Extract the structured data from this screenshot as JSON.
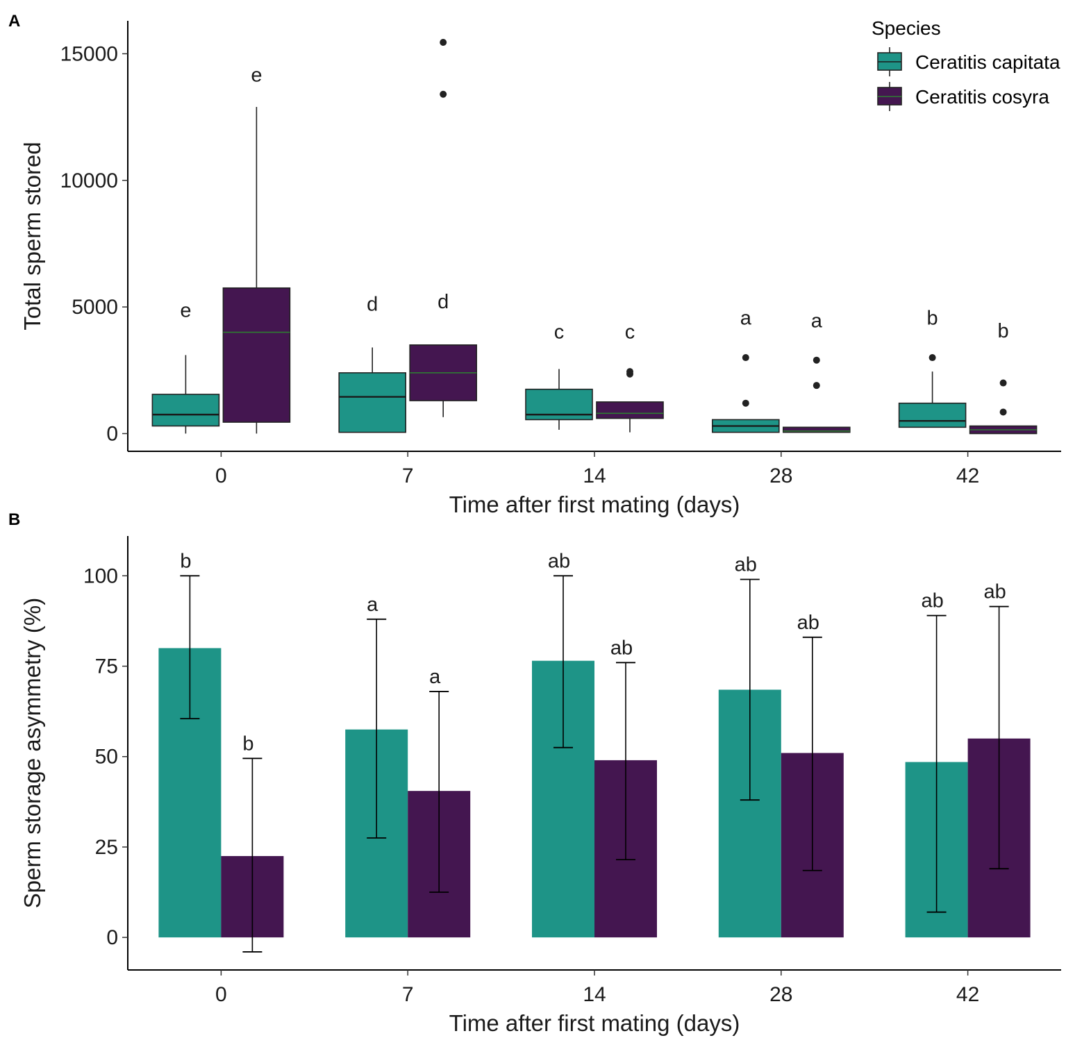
{
  "figure": {
    "panel_labels": [
      "A",
      "B"
    ]
  },
  "colors": {
    "capitata": "#1e9487",
    "cosyra": "#441650",
    "median_cosyra": "#2e7d32"
  },
  "chart_data": [
    {
      "panel": "A",
      "type": "box",
      "title": "",
      "xlabel": "Time after first mating (days)",
      "ylabel": "Total sperm stored",
      "ylim": [
        -700,
        16300
      ],
      "yticks": [
        0,
        5000,
        10000,
        15000
      ],
      "categories": [
        "0",
        "7",
        "14",
        "28",
        "42"
      ],
      "legend": {
        "title": "Species",
        "position": "top-right",
        "entries": [
          "Ceratitis capitata",
          "Ceratitis cosyra"
        ]
      },
      "series": [
        {
          "name": "Ceratitis capitata",
          "boxes": [
            {
              "min": 0,
              "q1": 300,
              "median": 750,
              "q3": 1550,
              "max": 3100,
              "outliers": [],
              "letter": "e",
              "letter_y": 4600
            },
            {
              "min": 50,
              "q1": 50,
              "median": 1450,
              "q3": 2400,
              "max": 3400,
              "outliers": [],
              "letter": "d",
              "letter_y": 4850
            },
            {
              "min": 150,
              "q1": 550,
              "median": 750,
              "q3": 1750,
              "max": 2550,
              "outliers": [],
              "letter": "c",
              "letter_y": 3750
            },
            {
              "min": 50,
              "q1": 50,
              "median": 300,
              "q3": 550,
              "max": 550,
              "outliers": [
                1200,
                3000
              ],
              "letter": "a",
              "letter_y": 4300
            },
            {
              "min": 250,
              "q1": 250,
              "median": 500,
              "q3": 1200,
              "max": 2450,
              "outliers": [
                3000
              ],
              "letter": "b",
              "letter_y": 4300
            }
          ]
        },
        {
          "name": "Ceratitis cosyra",
          "boxes": [
            {
              "min": 0,
              "q1": 450,
              "median": 4000,
              "q3": 5750,
              "max": 12900,
              "outliers": [],
              "letter": "e",
              "letter_y": 13900
            },
            {
              "min": 650,
              "q1": 1300,
              "median": 2400,
              "q3": 3500,
              "max": 3500,
              "outliers": [
                13400,
                15450
              ],
              "letter": "d",
              "letter_y": 4950
            },
            {
              "min": 50,
              "q1": 600,
              "median": 800,
              "q3": 1250,
              "max": 1250,
              "outliers": [
                2350,
                2450
              ],
              "letter": "c",
              "letter_y": 3750
            },
            {
              "min": 50,
              "q1": 50,
              "median": 100,
              "q3": 250,
              "max": 250,
              "outliers": [
                1900,
                2900
              ],
              "letter": "a",
              "letter_y": 4200
            },
            {
              "min": 0,
              "q1": 0,
              "median": 150,
              "q3": 300,
              "max": 300,
              "outliers": [
                850,
                2000
              ],
              "letter": "b",
              "letter_y": 3800
            }
          ]
        }
      ]
    },
    {
      "panel": "B",
      "type": "bar",
      "title": "",
      "xlabel": "Time after first mating (days)",
      "ylabel": "Sperm storage asymmetry (%)",
      "ylim": [
        -9,
        111
      ],
      "yticks": [
        0,
        25,
        50,
        75,
        100
      ],
      "categories": [
        "0",
        "7",
        "14",
        "28",
        "42"
      ],
      "series": [
        {
          "name": "Ceratitis capitata",
          "values": [
            80,
            57.5,
            76.5,
            68.5,
            48.5
          ],
          "error_low": [
            60.5,
            27.5,
            52.5,
            38,
            7
          ],
          "error_high": [
            100,
            88,
            100,
            99,
            89
          ],
          "letters": [
            "b",
            "a",
            "ab",
            "ab",
            "ab"
          ]
        },
        {
          "name": "Ceratitis cosyra",
          "values": [
            22.5,
            40.5,
            49,
            51,
            55
          ],
          "error_low": [
            -4,
            12.5,
            21.5,
            18.5,
            19
          ],
          "error_high": [
            49.5,
            68,
            76,
            83,
            91.5
          ],
          "letters": [
            "b",
            "a",
            "ab",
            "ab",
            "ab"
          ]
        }
      ]
    }
  ]
}
